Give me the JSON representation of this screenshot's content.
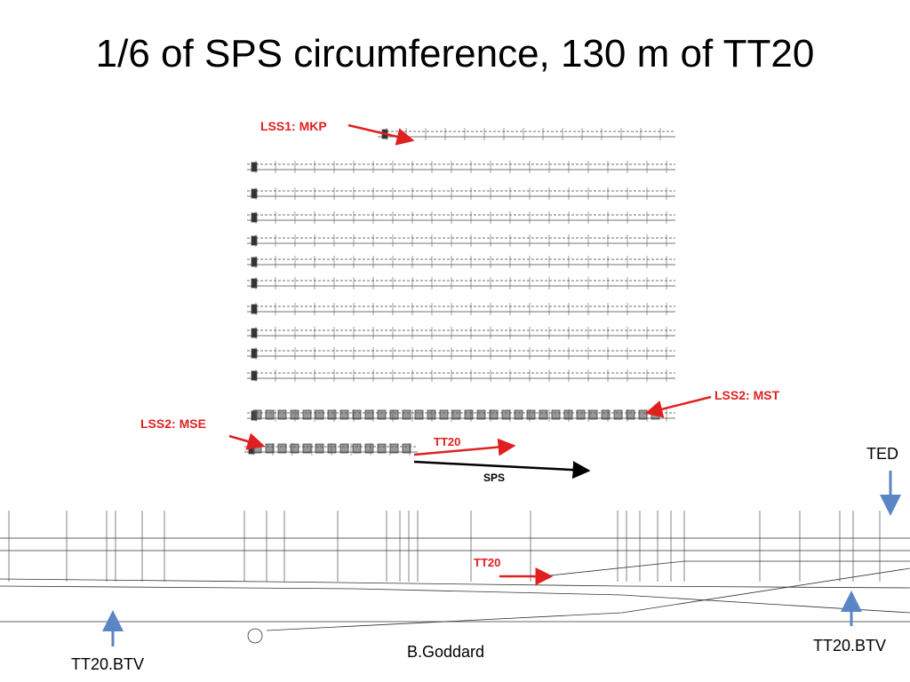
{
  "header": {
    "title": "1/6 of SPS circumference, 130 m of TT20"
  },
  "annotations": {
    "lss1": "LSS1: MKP",
    "lss2_mst": "LSS2: MST",
    "lss2_mse": "LSS2: MSE",
    "tt20_upper": "TT20",
    "sps": "SPS",
    "ted": "TED",
    "tt20_lower": "TT20",
    "btv_left": "TT20.BTV",
    "btv_right": "TT20.BTV"
  },
  "footer": {
    "author": "B.Goddard"
  }
}
